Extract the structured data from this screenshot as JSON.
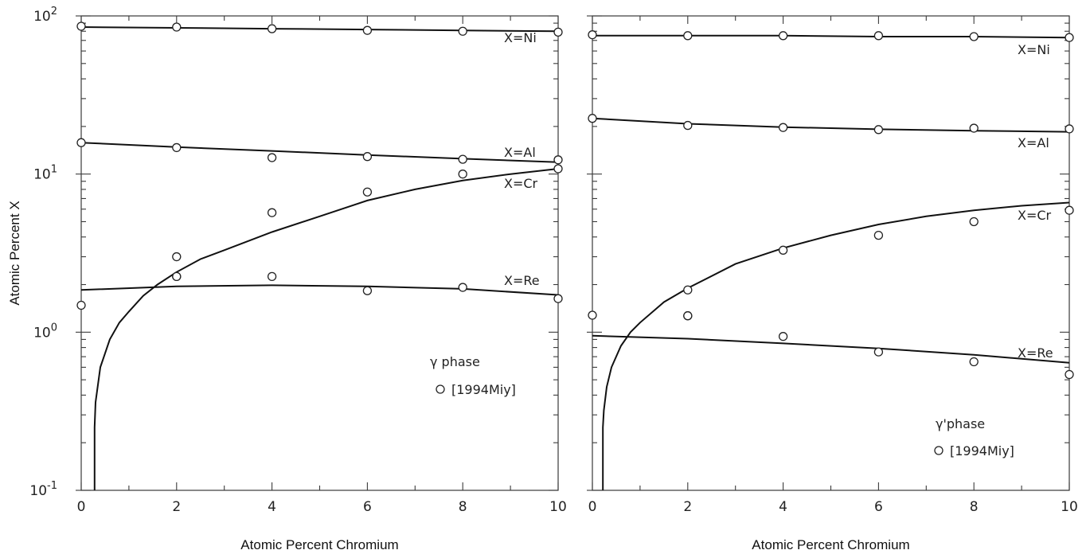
{
  "figure": {
    "ylabel": "Atomic Percent X",
    "ytick_labels": [
      {
        "mantissa": "10",
        "exponent": "-1",
        "value": 0.1
      },
      {
        "mantissa": "10",
        "exponent": "0",
        "value": 1
      },
      {
        "mantissa": "10",
        "exponent": "1",
        "value": 10
      },
      {
        "mantissa": "10",
        "exponent": "2",
        "value": 100
      }
    ]
  },
  "chart_data": [
    {
      "type": "line",
      "xlabel": "Atomic Percent Chromium",
      "ylabel": "Atomic Percent X",
      "y_scale": "log",
      "xlim": [
        0,
        10
      ],
      "ylim": [
        0.1,
        100
      ],
      "xticks": [
        0,
        2,
        4,
        6,
        8,
        10
      ],
      "grid": false,
      "legend": {
        "phase": "γ phase",
        "marker_label": "[1994Miy]",
        "position": "lower-right"
      },
      "series": [
        {
          "name": "X=Ni",
          "line": {
            "x": [
              0,
              2,
              4,
              6,
              8,
              10
            ],
            "y": [
              85,
              84,
              83,
              82,
              81,
              80
            ]
          },
          "points": {
            "x": [
              0,
              2,
              4,
              6,
              8,
              10
            ],
            "y": [
              86,
              85,
              83,
              81,
              80,
              79
            ]
          }
        },
        {
          "name": "X=Al",
          "line": {
            "x": [
              0,
              2,
              4,
              6,
              8,
              10
            ],
            "y": [
              15.8,
              14.8,
              14.0,
              13.2,
              12.5,
              11.9
            ]
          },
          "points": {
            "x": [
              0,
              2,
              4,
              6,
              8,
              10
            ],
            "y": [
              15.8,
              14.7,
              12.7,
              12.9,
              12.4,
              12.3
            ]
          }
        },
        {
          "name": "X=Cr",
          "line": {
            "x": [
              0.28,
              0.28,
              0.3,
              0.4,
              0.6,
              0.8,
              1,
              1.3,
              1.6,
              2,
              2.5,
              3,
              4,
              5,
              6,
              7,
              8,
              9,
              10
            ],
            "y": [
              0.1,
              0.25,
              0.36,
              0.6,
              0.9,
              1.15,
              1.35,
              1.7,
              2.0,
              2.4,
              2.9,
              3.3,
              4.3,
              5.4,
              6.8,
              8.0,
              9.1,
              10.0,
              10.8
            ]
          },
          "points": {
            "x": [
              2,
              2,
              4,
              6,
              8,
              10
            ],
            "y": [
              3.0,
              2.25,
              5.7,
              7.7,
              10.0,
              10.8
            ]
          }
        },
        {
          "name": "X=Re",
          "line": {
            "x": [
              0,
              2,
              4,
              6,
              8,
              10
            ],
            "y": [
              1.85,
              1.95,
              1.98,
              1.95,
              1.88,
              1.72
            ]
          },
          "points": {
            "x": [
              0,
              2,
              4,
              6,
              8,
              10
            ],
            "y": [
              1.48,
              2.25,
              2.25,
              1.83,
              1.92,
              1.63
            ]
          }
        }
      ]
    },
    {
      "type": "line",
      "xlabel": "Atomic Percent Chromium",
      "ylabel": "",
      "y_scale": "log",
      "xlim": [
        0,
        10
      ],
      "ylim": [
        0.1,
        100
      ],
      "xticks": [
        0,
        2,
        4,
        6,
        8,
        10
      ],
      "grid": false,
      "legend": {
        "phase": "γ'phase",
        "marker_label": "[1994Miy]",
        "position": "lower-right"
      },
      "series": [
        {
          "name": "X=Ni",
          "line": {
            "x": [
              0,
              2,
              4,
              6,
              8,
              10
            ],
            "y": [
              75,
              75,
              75,
              74,
              74,
              73
            ]
          },
          "points": {
            "x": [
              0,
              2,
              4,
              6,
              8,
              10
            ],
            "y": [
              76,
              75,
              75,
              75,
              74,
              73
            ]
          }
        },
        {
          "name": "X=Al",
          "line": {
            "x": [
              0,
              2,
              4,
              6,
              8,
              10
            ],
            "y": [
              22.5,
              20.8,
              19.8,
              19.2,
              18.8,
              18.5
            ]
          },
          "points": {
            "x": [
              0,
              2,
              4,
              6,
              8,
              10
            ],
            "y": [
              22.5,
              20.3,
              19.7,
              19.1,
              19.5,
              19.3
            ]
          }
        },
        {
          "name": "X=Cr",
          "line": {
            "x": [
              0.22,
              0.22,
              0.24,
              0.3,
              0.4,
              0.6,
              0.8,
              1,
              1.5,
              2,
              3,
              4,
              5,
              6,
              7,
              8,
              9,
              10
            ],
            "y": [
              0.1,
              0.25,
              0.32,
              0.45,
              0.6,
              0.82,
              1.0,
              1.15,
              1.55,
              1.9,
              2.7,
              3.4,
              4.1,
              4.8,
              5.4,
              5.9,
              6.3,
              6.6
            ]
          },
          "points": {
            "x": [
              2,
              2,
              4,
              6,
              8,
              10
            ],
            "y": [
              1.85,
              1.27,
              3.3,
              4.1,
              5.0,
              5.9
            ]
          }
        },
        {
          "name": "X=Re",
          "line": {
            "x": [
              0,
              2,
              4,
              6,
              8,
              10
            ],
            "y": [
              0.95,
              0.91,
              0.85,
              0.79,
              0.72,
              0.64
            ]
          },
          "points": {
            "x": [
              0,
              2,
              4,
              6,
              8,
              10
            ],
            "y": [
              1.28,
              1.27,
              0.94,
              0.75,
              0.65,
              0.54
            ]
          }
        }
      ]
    }
  ]
}
